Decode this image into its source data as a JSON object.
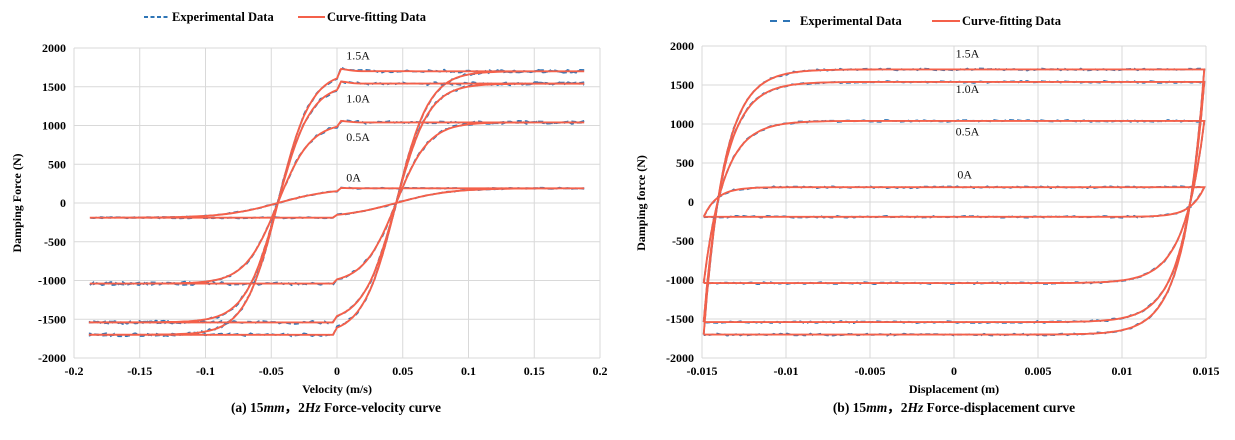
{
  "colors": {
    "experimental": "#2e75b6",
    "fit": "#f4604a",
    "grid": "#d9d9d9"
  },
  "chart_data": [
    {
      "type": "line",
      "id": "a",
      "caption_prefix": "(a) 15",
      "caption_mm": "mm",
      "caption_sep": "，2",
      "caption_hz": "Hz",
      "caption_suffix": " Force-velocity curve",
      "xlabel": "Velocity (m/s)",
      "ylabel": "Damping Force (N)",
      "xlim": [
        -0.2,
        0.2
      ],
      "ylim": [
        -2000,
        2000
      ],
      "xticks": [
        -0.2,
        -0.15,
        -0.1,
        -0.05,
        0,
        0.05,
        0.1,
        0.15,
        0.2
      ],
      "xtick_labels": [
        "-0.2",
        "-0.15",
        "-0.1",
        "-0.05",
        "0",
        "0.05",
        "0.1",
        "0.15",
        "0.2"
      ],
      "yticks": [
        2000,
        1500,
        1000,
        500,
        0,
        -500,
        -1000,
        -1500,
        -2000
      ],
      "ytick_labels": [
        "2000",
        "1500",
        "1000",
        "500",
        "0",
        "-500",
        "-1000",
        "-1500",
        "-2000"
      ],
      "grid": true,
      "legend": {
        "position": "top-center",
        "entries": [
          "Experimental Data",
          "Curve-fitting Data"
        ]
      },
      "annotations": [
        {
          "text": "1.5A",
          "x": 0.007,
          "y": 1850
        },
        {
          "text": "1.0A",
          "x": 0.007,
          "y": 1300
        },
        {
          "text": "0.5A",
          "x": 0.007,
          "y": 800
        },
        {
          "text": "0A",
          "x": 0.007,
          "y": 280
        }
      ],
      "series": [
        {
          "current": "1.5A",
          "saturation_force": 1700,
          "lower_force": -1700,
          "velocity_range": [
            -0.188,
            0.188
          ]
        },
        {
          "current": "1.0A",
          "saturation_force": 1540,
          "lower_force": -1550,
          "velocity_range": [
            -0.188,
            0.188
          ]
        },
        {
          "current": "0.5A",
          "saturation_force": 1040,
          "lower_force": -1040,
          "velocity_range": [
            -0.188,
            0.188
          ]
        },
        {
          "current": "0A",
          "saturation_force": 190,
          "lower_force": -190,
          "velocity_range": [
            -0.188,
            0.188
          ]
        }
      ]
    },
    {
      "type": "line",
      "id": "b",
      "caption_prefix": "(b) 15",
      "caption_mm": "mm",
      "caption_sep": "，2",
      "caption_hz": "Hz",
      "caption_suffix": " Force-displacement curve",
      "xlabel": "Displacement (m)",
      "ylabel": "Damping force (N)",
      "xlim": [
        -0.015,
        0.015
      ],
      "ylim": [
        -2000,
        2000
      ],
      "xticks": [
        -0.015,
        -0.01,
        -0.005,
        0,
        0.005,
        0.01,
        0.015
      ],
      "xtick_labels": [
        "-0.015",
        "-0.01",
        "-0.005",
        "0",
        "0.005",
        "0.01",
        "0.015"
      ],
      "yticks": [
        2000,
        1500,
        1000,
        500,
        0,
        -500,
        -1000,
        -1500,
        -2000
      ],
      "ytick_labels": [
        "2000",
        "1500",
        "1000",
        "500",
        "0",
        "-500",
        "-1000",
        "-1500",
        "-2000"
      ],
      "grid": true,
      "legend": {
        "position": "top-center",
        "entries": [
          "Experimental Data",
          "Curve-fitting Data"
        ]
      },
      "annotations": [
        {
          "text": "1.5A",
          "x": 0.0001,
          "y": 1850
        },
        {
          "text": "1.0A",
          "x": 0.0001,
          "y": 1400
        },
        {
          "text": "0.5A",
          "x": 0.0001,
          "y": 850
        },
        {
          "text": "0A",
          "x": 0.0002,
          "y": 300
        }
      ],
      "series": [
        {
          "current": "1.5A",
          "upper_force": 1700,
          "lower_force": -1700,
          "displacement_range": [
            -0.015,
            0.015
          ]
        },
        {
          "current": "1.0A",
          "upper_force": 1540,
          "lower_force": -1540,
          "displacement_range": [
            -0.015,
            0.015
          ]
        },
        {
          "current": "0.5A",
          "upper_force": 1040,
          "lower_force": -1040,
          "displacement_range": [
            -0.015,
            0.015
          ]
        },
        {
          "current": "0A",
          "upper_force": 190,
          "lower_force": -190,
          "displacement_range": [
            -0.015,
            0.015
          ]
        }
      ]
    }
  ]
}
